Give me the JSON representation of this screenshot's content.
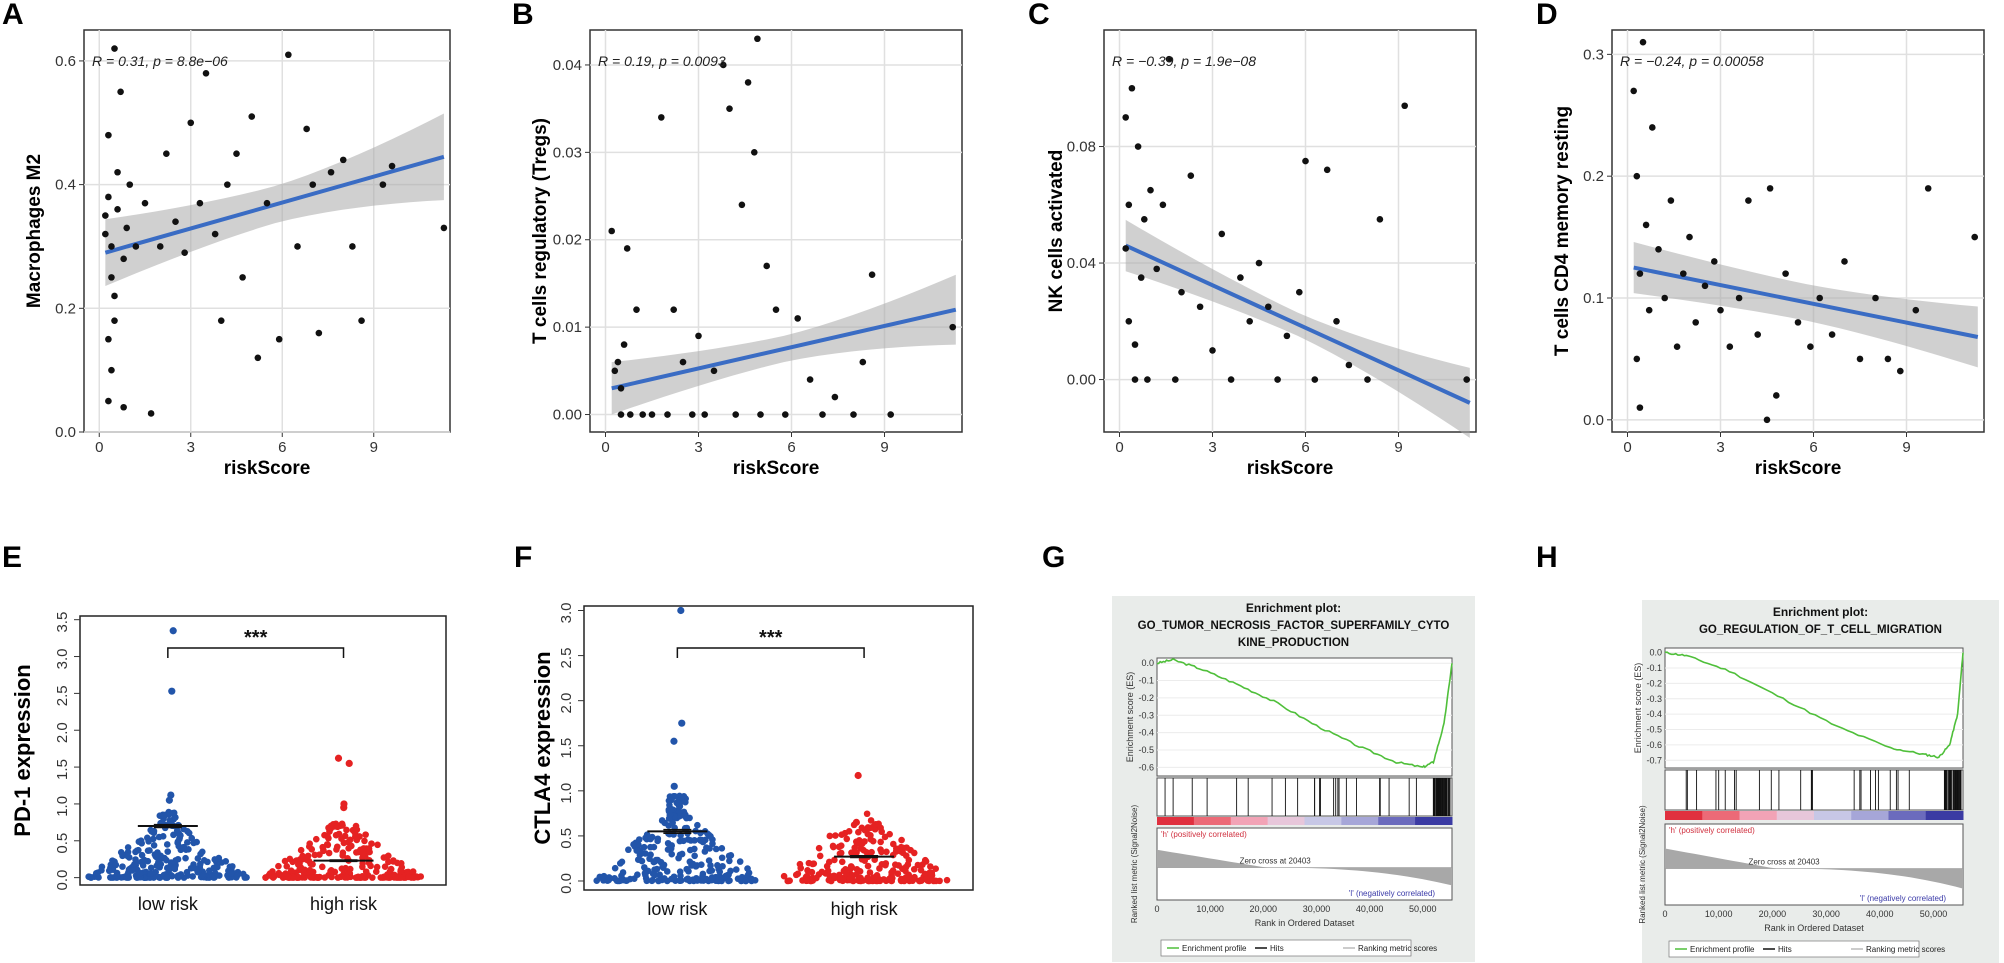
{
  "chart_data": [
    {
      "panel": "A",
      "type": "scatter",
      "xlabel": "riskScore",
      "ylabel": "Macrophages M2",
      "annotation": "R = 0.31, p = 8.8e−06",
      "xticks": [
        "0",
        "3",
        "6",
        "9"
      ],
      "yticks": [
        "0.0",
        "0.2",
        "0.4",
        "0.6"
      ],
      "xlim": [
        -0.5,
        11.5
      ],
      "ylim": [
        0,
        0.65
      ],
      "fit": {
        "x": [
          0.2,
          11.3
        ],
        "y": [
          0.29,
          0.445
        ],
        "ci": [
          0.03,
          0.07
        ]
      },
      "points": [
        [
          0.2,
          0.35
        ],
        [
          0.3,
          0.38
        ],
        [
          0.4,
          0.25
        ],
        [
          0.3,
          0.15
        ],
        [
          0.5,
          0.62
        ],
        [
          0.5,
          0.18
        ],
        [
          0.6,
          0.42
        ],
        [
          0.2,
          0.32
        ],
        [
          0.4,
          0.3
        ],
        [
          0.7,
          0.55
        ],
        [
          0.8,
          0.28
        ],
        [
          0.6,
          0.36
        ],
        [
          0.3,
          0.48
        ],
        [
          0.5,
          0.22
        ],
        [
          0.9,
          0.33
        ],
        [
          1.0,
          0.4
        ],
        [
          0.4,
          0.1
        ],
        [
          0.3,
          0.05
        ],
        [
          0.8,
          0.04
        ],
        [
          1.2,
          0.3
        ],
        [
          1.5,
          0.37
        ],
        [
          1.7,
          0.03
        ],
        [
          2.0,
          0.3
        ],
        [
          2.2,
          0.45
        ],
        [
          2.5,
          0.34
        ],
        [
          2.8,
          0.29
        ],
        [
          3.0,
          0.5
        ],
        [
          3.3,
          0.37
        ],
        [
          3.5,
          0.58
        ],
        [
          3.8,
          0.32
        ],
        [
          4.0,
          0.18
        ],
        [
          4.2,
          0.4
        ],
        [
          4.5,
          0.45
        ],
        [
          4.7,
          0.25
        ],
        [
          5.0,
          0.51
        ],
        [
          5.2,
          0.12
        ],
        [
          5.5,
          0.37
        ],
        [
          5.9,
          0.15
        ],
        [
          6.2,
          0.61
        ],
        [
          6.5,
          0.3
        ],
        [
          6.8,
          0.49
        ],
        [
          7.0,
          0.4
        ],
        [
          7.2,
          0.16
        ],
        [
          7.6,
          0.42
        ],
        [
          8.0,
          0.44
        ],
        [
          8.3,
          0.3
        ],
        [
          8.6,
          0.18
        ],
        [
          9.3,
          0.4
        ],
        [
          9.6,
          0.43
        ],
        [
          11.3,
          0.33
        ]
      ]
    },
    {
      "panel": "B",
      "type": "scatter",
      "xlabel": "riskScore",
      "ylabel": "T cells regulatory (Tregs)",
      "annotation": "R = 0.19, p = 0.0093",
      "xticks": [
        "0",
        "3",
        "6",
        "9"
      ],
      "yticks": [
        "0.00",
        "0.01",
        "0.02",
        "0.03",
        "0.04"
      ],
      "xlim": [
        -0.5,
        11.5
      ],
      "ylim": [
        -0.002,
        0.044
      ],
      "fit": {
        "x": [
          0.2,
          11.3
        ],
        "y": [
          0.003,
          0.012
        ],
        "ci": [
          0.0015,
          0.004
        ]
      },
      "points": [
        [
          0.2,
          0.021
        ],
        [
          0.3,
          0.005
        ],
        [
          0.5,
          0.003
        ],
        [
          0.4,
          0.006
        ],
        [
          0.6,
          0.008
        ],
        [
          0.7,
          0.019
        ],
        [
          0.5,
          0.0
        ],
        [
          0.8,
          0.0
        ],
        [
          1.0,
          0.012
        ],
        [
          1.2,
          0.0
        ],
        [
          1.5,
          0.0
        ],
        [
          1.8,
          0.034
        ],
        [
          2.0,
          0.0
        ],
        [
          2.2,
          0.012
        ],
        [
          2.5,
          0.006
        ],
        [
          2.8,
          0.0
        ],
        [
          3.0,
          0.009
        ],
        [
          3.2,
          0.0
        ],
        [
          3.5,
          0.005
        ],
        [
          3.8,
          0.04
        ],
        [
          4.0,
          0.035
        ],
        [
          4.2,
          0.0
        ],
        [
          4.4,
          0.024
        ],
        [
          4.6,
          0.038
        ],
        [
          4.8,
          0.03
        ],
        [
          4.9,
          0.043
        ],
        [
          5.0,
          0.0
        ],
        [
          5.2,
          0.017
        ],
        [
          5.5,
          0.012
        ],
        [
          5.8,
          0.0
        ],
        [
          6.2,
          0.011
        ],
        [
          6.6,
          0.004
        ],
        [
          7.0,
          0.0
        ],
        [
          7.4,
          0.002
        ],
        [
          8.0,
          0.0
        ],
        [
          8.3,
          0.006
        ],
        [
          8.6,
          0.016
        ],
        [
          9.2,
          0.0
        ],
        [
          11.2,
          0.01
        ]
      ]
    },
    {
      "panel": "C",
      "type": "scatter",
      "xlabel": "riskScore",
      "ylabel": "NK cells activated",
      "annotation": "R = −0.39, p = 1.9e−08",
      "xticks": [
        "0",
        "3",
        "6",
        "9"
      ],
      "yticks": [
        "0.00",
        "0.04",
        "0.08"
      ],
      "xlim": [
        -0.5,
        11.5
      ],
      "ylim": [
        -0.018,
        0.12
      ],
      "fit": {
        "x": [
          0.2,
          11.3
        ],
        "y": [
          0.046,
          -0.008
        ],
        "ci": [
          0.004,
          0.012
        ]
      },
      "points": [
        [
          0.2,
          0.09
        ],
        [
          0.3,
          0.06
        ],
        [
          0.4,
          0.1
        ],
        [
          0.3,
          0.02
        ],
        [
          0.5,
          0.0
        ],
        [
          0.6,
          0.08
        ],
        [
          0.2,
          0.045
        ],
        [
          0.7,
          0.035
        ],
        [
          0.8,
          0.055
        ],
        [
          0.5,
          0.012
        ],
        [
          0.9,
          0.0
        ],
        [
          1.0,
          0.065
        ],
        [
          1.2,
          0.038
        ],
        [
          1.4,
          0.06
        ],
        [
          1.6,
          0.11
        ],
        [
          1.8,
          0.0
        ],
        [
          2.0,
          0.03
        ],
        [
          2.3,
          0.07
        ],
        [
          2.6,
          0.025
        ],
        [
          3.0,
          0.01
        ],
        [
          3.3,
          0.05
        ],
        [
          3.6,
          0.0
        ],
        [
          3.9,
          0.035
        ],
        [
          4.2,
          0.02
        ],
        [
          4.5,
          0.04
        ],
        [
          4.8,
          0.025
        ],
        [
          5.1,
          0.0
        ],
        [
          5.4,
          0.015
        ],
        [
          5.8,
          0.03
        ],
        [
          6.0,
          0.075
        ],
        [
          6.3,
          0.0
        ],
        [
          6.7,
          0.072
        ],
        [
          7.0,
          0.02
        ],
        [
          7.4,
          0.005
        ],
        [
          8.0,
          0.0
        ],
        [
          8.4,
          0.055
        ],
        [
          9.2,
          0.094
        ],
        [
          11.2,
          0.0
        ]
      ]
    },
    {
      "panel": "D",
      "type": "scatter",
      "xlabel": "riskScore",
      "ylabel": "T cells CD4 memory resting",
      "annotation": "R = −0.24, p = 0.00058",
      "xticks": [
        "0",
        "3",
        "6",
        "9"
      ],
      "yticks": [
        "0.0",
        "0.1",
        "0.2",
        "0.3"
      ],
      "xlim": [
        -0.5,
        11.5
      ],
      "ylim": [
        -0.01,
        0.32
      ],
      "fit": {
        "x": [
          0.2,
          11.3
        ],
        "y": [
          0.125,
          0.068
        ],
        "ci": [
          0.015,
          0.025
        ]
      },
      "points": [
        [
          0.2,
          0.27
        ],
        [
          0.3,
          0.2
        ],
        [
          0.4,
          0.12
        ],
        [
          0.5,
          0.31
        ],
        [
          0.3,
          0.05
        ],
        [
          0.6,
          0.16
        ],
        [
          0.7,
          0.09
        ],
        [
          0.8,
          0.24
        ],
        [
          0.4,
          0.01
        ],
        [
          1.0,
          0.14
        ],
        [
          1.2,
          0.1
        ],
        [
          1.4,
          0.18
        ],
        [
          1.6,
          0.06
        ],
        [
          1.8,
          0.12
        ],
        [
          2.0,
          0.15
        ],
        [
          2.2,
          0.08
        ],
        [
          2.5,
          0.11
        ],
        [
          2.8,
          0.13
        ],
        [
          3.0,
          0.09
        ],
        [
          3.3,
          0.06
        ],
        [
          3.6,
          0.1
        ],
        [
          3.9,
          0.18
        ],
        [
          4.2,
          0.07
        ],
        [
          4.5,
          0.0
        ],
        [
          4.6,
          0.19
        ],
        [
          4.8,
          0.02
        ],
        [
          5.1,
          0.12
        ],
        [
          5.5,
          0.08
        ],
        [
          5.9,
          0.06
        ],
        [
          6.2,
          0.1
        ],
        [
          6.6,
          0.07
        ],
        [
          7.0,
          0.13
        ],
        [
          7.5,
          0.05
        ],
        [
          8.0,
          0.1
        ],
        [
          8.4,
          0.05
        ],
        [
          8.8,
          0.04
        ],
        [
          9.3,
          0.09
        ],
        [
          9.7,
          0.19
        ],
        [
          11.2,
          0.15
        ]
      ]
    },
    {
      "panel": "E",
      "type": "scatter",
      "subtype": "beeswarm",
      "ylabel": "PD-1 expression",
      "categories": [
        "low risk",
        "high risk"
      ],
      "yticks": [
        "0.0",
        "0.5",
        "1.0",
        "1.5",
        "2.0",
        "2.5",
        "3.0",
        "3.5"
      ],
      "ylim": [
        -0.1,
        3.55
      ],
      "mean_sem": [
        {
          "mean": 0.7,
          "sem": 0.02
        },
        {
          "mean": 0.23,
          "sem": 0.01
        }
      ],
      "outliers": [
        [
          [
            0,
            3.35
          ],
          [
            0,
            2.53
          ],
          [
            0,
            1.12
          ],
          [
            0,
            1.05
          ]
        ],
        [
          [
            1,
            1.62
          ],
          [
            1,
            1.55
          ],
          [
            1,
            1.0
          ],
          [
            1,
            0.95
          ]
        ]
      ],
      "significance": "***",
      "colors": [
        "#2255aa",
        "#e52222"
      ]
    },
    {
      "panel": "F",
      "type": "scatter",
      "subtype": "beeswarm",
      "ylabel": "CTLA4 expression",
      "categories": [
        "low risk",
        "high risk"
      ],
      "yticks": [
        "0.0",
        "0.5",
        "1.0",
        "1.5",
        "2.0",
        "2.5",
        "3.0"
      ],
      "ylim": [
        -0.1,
        3.05
      ],
      "mean_sem": [
        {
          "mean": 0.55,
          "sem": 0.02
        },
        {
          "mean": 0.27,
          "sem": 0.01
        }
      ],
      "outliers": [
        [
          [
            0,
            3.0
          ],
          [
            0,
            1.75
          ],
          [
            0,
            1.55
          ],
          [
            0,
            1.05
          ]
        ],
        [
          [
            1,
            1.17
          ],
          [
            1,
            0.65
          ]
        ]
      ],
      "significance": "***",
      "colors": [
        "#2255aa",
        "#e52222"
      ]
    },
    {
      "panel": "G",
      "type": "line",
      "title": "Enrichment plot:",
      "subtitle_lines": [
        "GO_TUMOR_NECROSIS_FACTOR_SUPERFAMILY_CYTO",
        "KINE_PRODUCTION"
      ],
      "ylabel": "Enrichment score (ES)",
      "ylabel2": "Ranked list metric (Signal2Noise)",
      "xlabel": "Rank in Ordered Dataset",
      "yticks": [
        "0.0",
        "-0.1",
        "-0.2",
        "-0.3",
        "-0.4",
        "-0.5",
        "-0.6"
      ],
      "xticks": [
        "0",
        "10,000",
        "20,000",
        "30,000",
        "40,000",
        "50,000"
      ],
      "ylim": [
        -0.65,
        0.03
      ],
      "es_curve": [
        [
          0,
          0.0
        ],
        [
          3000,
          0.02
        ],
        [
          8000,
          -0.03
        ],
        [
          15000,
          -0.12
        ],
        [
          22000,
          -0.22
        ],
        [
          30000,
          -0.36
        ],
        [
          38000,
          -0.48
        ],
        [
          45000,
          -0.57
        ],
        [
          50000,
          -0.6
        ],
        [
          52000,
          -0.57
        ],
        [
          54000,
          -0.35
        ],
        [
          55500,
          0.0
        ]
      ],
      "pos_label": "'h' (positively correlated)",
      "neg_label": "'l' (negatively correlated)",
      "zero_cross": "Zero cross at 20403",
      "legend": [
        "Enrichment profile",
        "Hits",
        "Ranking metric scores"
      ]
    },
    {
      "panel": "H",
      "type": "line",
      "title": "Enrichment plot:",
      "subtitle_lines": [
        "GO_REGULATION_OF_T_CELL_MIGRATION"
      ],
      "ylabel": "Enrichment score (ES)",
      "ylabel2": "Ranked list metric (Signal2Noise)",
      "xlabel": "Rank in Ordered Dataset",
      "yticks": [
        "0.0",
        "-0.1",
        "-0.2",
        "-0.3",
        "-0.4",
        "-0.5",
        "-0.6",
        "-0.7"
      ],
      "xticks": [
        "0",
        "10,000",
        "20,000",
        "30,000",
        "40,000",
        "50,000"
      ],
      "ylim": [
        -0.75,
        0.03
      ],
      "es_curve": [
        [
          0,
          0.0
        ],
        [
          4000,
          -0.02
        ],
        [
          12000,
          -0.12
        ],
        [
          22000,
          -0.3
        ],
        [
          32000,
          -0.48
        ],
        [
          42000,
          -0.62
        ],
        [
          48000,
          -0.66
        ],
        [
          51000,
          -0.68
        ],
        [
          53000,
          -0.6
        ],
        [
          54500,
          -0.4
        ],
        [
          55500,
          0.0
        ]
      ],
      "pos_label": "'h' (positively correlated)",
      "neg_label": "'l' (negatively correlated)",
      "zero_cross": "Zero cross at 20403",
      "legend": [
        "Enrichment profile",
        "Hits",
        "Ranking metric scores"
      ]
    }
  ]
}
